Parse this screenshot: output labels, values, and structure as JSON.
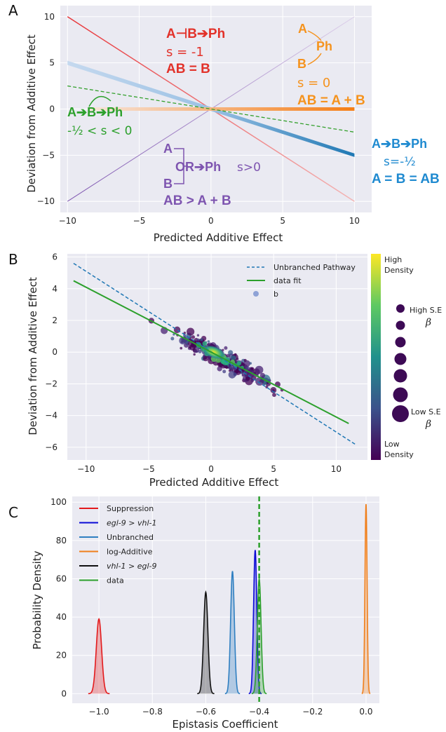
{
  "panels": {
    "a": "A",
    "b": "B",
    "c": "C"
  },
  "chart_data": [
    {
      "type": "line",
      "panel": "A",
      "xlabel": "Predicted Additive Effect",
      "ylabel": "Deviation from Additive Effect",
      "xlim": [
        -10,
        10
      ],
      "ylim": [
        -10,
        10
      ],
      "xticks": [
        "−10",
        "−5",
        "0",
        "5",
        "10"
      ],
      "yticks": [
        "10",
        "5",
        "0",
        "−5",
        "−10"
      ],
      "grid": true,
      "series": [
        {
          "color": "#e8363a",
          "x": [
            -10,
            10
          ],
          "y": [
            10,
            -10
          ]
        },
        {
          "color": "#f5a05a",
          "x": [
            -10,
            10
          ],
          "y": [
            0,
            0
          ]
        },
        {
          "color": "#33a02c",
          "x": [
            -10,
            10
          ],
          "y": [
            2.5,
            -2.5
          ]
        },
        {
          "color": "#2680c2",
          "x": [
            -10,
            10
          ],
          "y": [
            5,
            -5
          ]
        },
        {
          "color": "#7e55b0",
          "x": [
            -10,
            10
          ],
          "y": [
            -10,
            10
          ]
        }
      ],
      "annotations": {
        "supp_top": "A⊣B➔Ph",
        "supp_s": "s = -1",
        "supp_eq": "AB = B",
        "add_a": "A",
        "add_ph": "Ph",
        "add_b": "B",
        "add_s": "s = 0",
        "add_eq": "AB = A + B",
        "green_path": "A➔B➔Ph",
        "green_s": "-½ < s < 0",
        "purple_a": "A",
        "purple_or": "OR➔Ph",
        "purple_s": "s>0",
        "purple_b": "B",
        "purple_eq": "AB > A + B",
        "blue_path": "A➔B➔Ph",
        "blue_s": "s=-½",
        "blue_eq": "A = B = AB"
      }
    },
    {
      "type": "scatter",
      "panel": "B",
      "xlabel": "Predicted Additive Effect",
      "ylabel": "Deviation from Additive Effect",
      "xlim": [
        -11.5,
        12.5
      ],
      "ylim": [
        -6.8,
        6.2
      ],
      "xticks": [
        "−10",
        "−5",
        "0",
        "5",
        "10"
      ],
      "yticks": [
        "6",
        "4",
        "2",
        "0",
        "−2",
        "−4",
        "−6"
      ],
      "grid": true,
      "legend": [
        "Unbranched Pathway",
        "data fit",
        "b"
      ],
      "lines": {
        "unbranched": {
          "x": [
            -11,
            11.5
          ],
          "y": [
            5.6,
            -5.8
          ]
        },
        "fit": {
          "x": [
            -11,
            11
          ],
          "y": [
            4.5,
            -4.5
          ]
        }
      },
      "colorbar": {
        "top": "High",
        "top2": "Density",
        "bottom": "Low",
        "bottom2": "Density"
      },
      "size_legend": {
        "high": "High S.E",
        "low": "Low S.E",
        "beta": "β"
      }
    },
    {
      "type": "area",
      "panel": "C",
      "xlabel": "Epistasis Coefficient",
      "ylabel": "Probability Density",
      "xlim": [
        -1.1,
        0.05
      ],
      "ylim": [
        -5,
        103
      ],
      "xticks": [
        "−1.0",
        "−0.8",
        "−0.6",
        "−0.4",
        "−0.2",
        "0.0"
      ],
      "yticks": [
        "100",
        "80",
        "60",
        "40",
        "20",
        "0"
      ],
      "grid": true,
      "legend_pos": "top-left",
      "vline": -0.4,
      "series": [
        {
          "name": "Suppression",
          "color": "#e31a1c",
          "mean": -1.0,
          "peak": 39,
          "sd": 0.01
        },
        {
          "name": "egl-9 > vhl-1",
          "color": "#0a0ad6",
          "mean": -0.415,
          "peak": 75,
          "sd": 0.006
        },
        {
          "name": "Unbranched",
          "color": "#2f7fc1",
          "mean": -0.5,
          "peak": 64,
          "sd": 0.007
        },
        {
          "name": "log-Additive",
          "color": "#f07f1b",
          "mean": 0.0,
          "peak": 99,
          "sd": 0.004
        },
        {
          "name": "vhl-1 > egl-9",
          "color": "#111111",
          "mean": -0.6,
          "peak": 53,
          "sd": 0.008
        },
        {
          "name": "data",
          "color": "#2ca02c",
          "mean": -0.4,
          "peak": 60,
          "sd": 0.007
        }
      ]
    }
  ]
}
